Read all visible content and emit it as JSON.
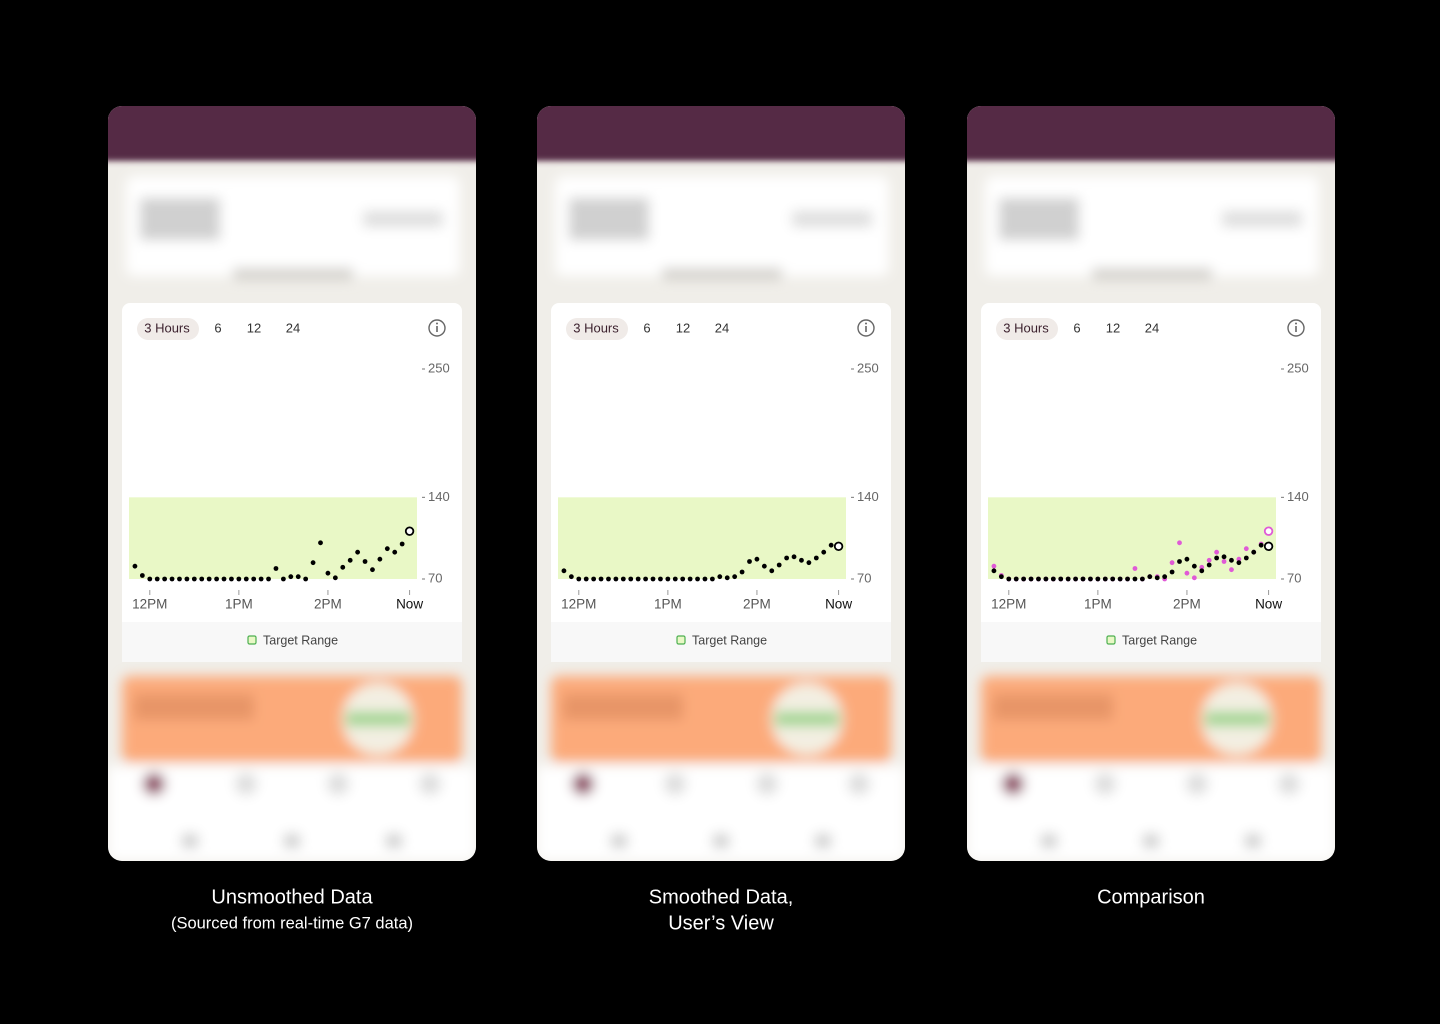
{
  "chart_data": [
    {
      "type": "scatter",
      "range_options": [
        "3 Hours",
        "6",
        "12",
        "24"
      ],
      "legend": "Target Range",
      "target_range": [
        70,
        140
      ],
      "target_color": "#e9f8c6",
      "x": [
        -10,
        -5,
        0,
        5,
        10,
        15,
        20,
        25,
        30,
        35,
        40,
        45,
        50,
        55,
        60,
        65,
        70,
        75,
        80,
        85,
        90,
        95,
        100,
        105,
        110,
        115,
        120,
        125,
        130,
        135,
        140,
        145,
        150,
        155,
        160,
        165,
        170,
        175
      ],
      "xlim": [
        -14,
        180
      ],
      "xticks": [
        {
          "value": 0,
          "label": "12PM"
        },
        {
          "value": 60,
          "label": "1PM"
        },
        {
          "value": 120,
          "label": "2PM"
        },
        {
          "value": 175,
          "label": "Now"
        }
      ],
      "ylim": [
        70,
        250
      ],
      "yticks": [
        70,
        140,
        250
      ],
      "series": [
        {
          "color": "#000000",
          "values": [
            81,
            73,
            70,
            70,
            70,
            70,
            70,
            70,
            70,
            70,
            70,
            70,
            70,
            70,
            70,
            70,
            70,
            70,
            70,
            79,
            70,
            72,
            72,
            70,
            84,
            101,
            75,
            71,
            80,
            86,
            93,
            85,
            78,
            87,
            96,
            93,
            100,
            111
          ]
        }
      ]
    },
    {
      "type": "scatter",
      "range_options": [
        "3 Hours",
        "6",
        "12",
        "24"
      ],
      "legend": "Target Range",
      "target_range": [
        70,
        140
      ],
      "target_color": "#e9f8c6",
      "x": [
        -10,
        -5,
        0,
        5,
        10,
        15,
        20,
        25,
        30,
        35,
        40,
        45,
        50,
        55,
        60,
        65,
        70,
        75,
        80,
        85,
        90,
        95,
        100,
        105,
        110,
        115,
        120,
        125,
        130,
        135,
        140,
        145,
        150,
        155,
        160,
        165,
        170,
        175
      ],
      "xlim": [
        -14,
        180
      ],
      "xticks": [
        {
          "value": 0,
          "label": "12PM"
        },
        {
          "value": 60,
          "label": "1PM"
        },
        {
          "value": 120,
          "label": "2PM"
        },
        {
          "value": 175,
          "label": "Now"
        }
      ],
      "ylim": [
        70,
        250
      ],
      "yticks": [
        70,
        140,
        250
      ],
      "series": [
        {
          "color": "#000000",
          "values": [
            77,
            72,
            70,
            70,
            70,
            70,
            70,
            70,
            70,
            70,
            70,
            70,
            70,
            70,
            70,
            70,
            70,
            70,
            70,
            70,
            70,
            72,
            71,
            72,
            76,
            85,
            87,
            81,
            77,
            82,
            88,
            89,
            86,
            84,
            88,
            93,
            99,
            98
          ]
        }
      ]
    },
    {
      "type": "scatter",
      "range_options": [
        "3 Hours",
        "6",
        "12",
        "24"
      ],
      "legend": "Target Range",
      "target_range": [
        70,
        140
      ],
      "target_color": "#e9f8c6",
      "x": [
        -10,
        -5,
        0,
        5,
        10,
        15,
        20,
        25,
        30,
        35,
        40,
        45,
        50,
        55,
        60,
        65,
        70,
        75,
        80,
        85,
        90,
        95,
        100,
        105,
        110,
        115,
        120,
        125,
        130,
        135,
        140,
        145,
        150,
        155,
        160,
        165,
        170,
        175
      ],
      "xlim": [
        -14,
        180
      ],
      "xticks": [
        {
          "value": 0,
          "label": "12PM"
        },
        {
          "value": 60,
          "label": "1PM"
        },
        {
          "value": 120,
          "label": "2PM"
        },
        {
          "value": 175,
          "label": "Now"
        }
      ],
      "ylim": [
        70,
        250
      ],
      "yticks": [
        70,
        140,
        250
      ],
      "series": [
        {
          "color": "#e05ad6",
          "values": [
            81,
            73,
            70,
            70,
            70,
            70,
            70,
            70,
            70,
            70,
            70,
            70,
            70,
            70,
            70,
            70,
            70,
            70,
            70,
            79,
            70,
            72,
            72,
            70,
            84,
            101,
            75,
            71,
            80,
            86,
            93,
            85,
            78,
            87,
            96,
            93,
            100,
            111
          ]
        },
        {
          "color": "#000000",
          "values": [
            77,
            72,
            70,
            70,
            70,
            70,
            70,
            70,
            70,
            70,
            70,
            70,
            70,
            70,
            70,
            70,
            70,
            70,
            70,
            70,
            70,
            72,
            71,
            72,
            76,
            85,
            87,
            81,
            77,
            82,
            88,
            89,
            86,
            84,
            88,
            93,
            99,
            98
          ]
        }
      ]
    }
  ],
  "captions": [
    [
      "Unsmoothed Data",
      "(Sourced from real-time G7 data)"
    ],
    [
      "Smoothed Data,",
      "User’s View"
    ],
    [
      "Comparison"
    ]
  ]
}
